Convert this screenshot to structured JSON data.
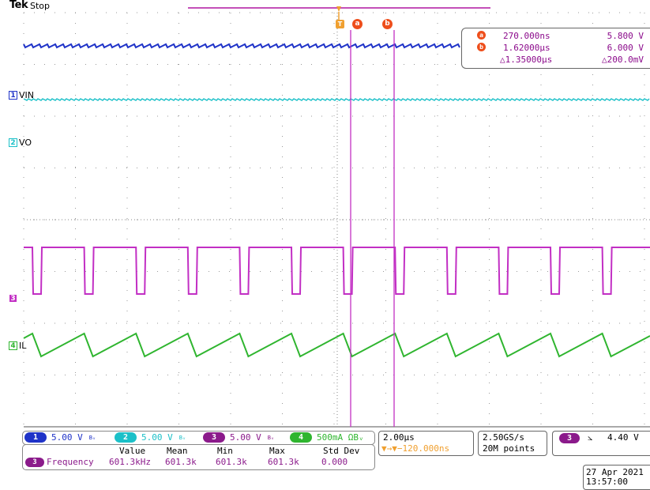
{
  "header": {
    "brand": "Tek",
    "status": "Stop"
  },
  "channels": [
    {
      "marker": "1",
      "label": "VIN",
      "color": "#1f33c8"
    },
    {
      "marker": "2",
      "label": "VO",
      "color": "#1cc0c8"
    },
    {
      "marker": "3",
      "label": "",
      "color": "#c22fc4"
    },
    {
      "marker": "4",
      "label": "IL",
      "color": "#2fb52f"
    }
  ],
  "trigger_marker": {
    "label": "T",
    "color": "#f0a030"
  },
  "cursors": {
    "a": {
      "tag": "a",
      "time": "270.000ns",
      "value": "5.800 V"
    },
    "b": {
      "tag": "b",
      "time": "1.62000µs",
      "value": "6.000 V"
    },
    "delta_time": "△1.35000µs",
    "delta_value": "△200.0mV",
    "color": "#ee4e1b"
  },
  "channel_settings": [
    {
      "num": "1",
      "scale": "5.00 V",
      "color": "#1f33c8",
      "value_color": "#1f33c8",
      "bw": "Bᵥ"
    },
    {
      "num": "2",
      "scale": "5.00 V",
      "color": "#1cc0c8",
      "value_color": "#1cc0c8",
      "bw": "Bᵥ"
    },
    {
      "num": "3",
      "scale": "5.00 V",
      "color": "#8b1a8b",
      "value_color": "#8b1a8b",
      "bw": "Bᵥ"
    },
    {
      "num": "4",
      "scale": "500mA ΩBᵥ",
      "color": "#2fb52f",
      "value_color": "#2fb52f",
      "bw": ""
    }
  ],
  "horizontal": {
    "timebase": "2.00µs",
    "trigger_position": "▼→▼−120.000ns"
  },
  "acquisition": {
    "sample_rate": "2.50GS/s",
    "record_length": "20M points"
  },
  "trigger": {
    "source": "3",
    "slope": "⦣",
    "level": "4.40 V"
  },
  "measurement": {
    "headers": [
      "Value",
      "Mean",
      "Min",
      "Max",
      "Std Dev"
    ],
    "source": "3",
    "name": "Frequency",
    "values": [
      "601.3kHz",
      "601.3k",
      "601.3k",
      "601.3k",
      "0.000"
    ]
  },
  "datetime": {
    "date": "27 Apr 2021",
    "time": "13:57:00"
  }
}
